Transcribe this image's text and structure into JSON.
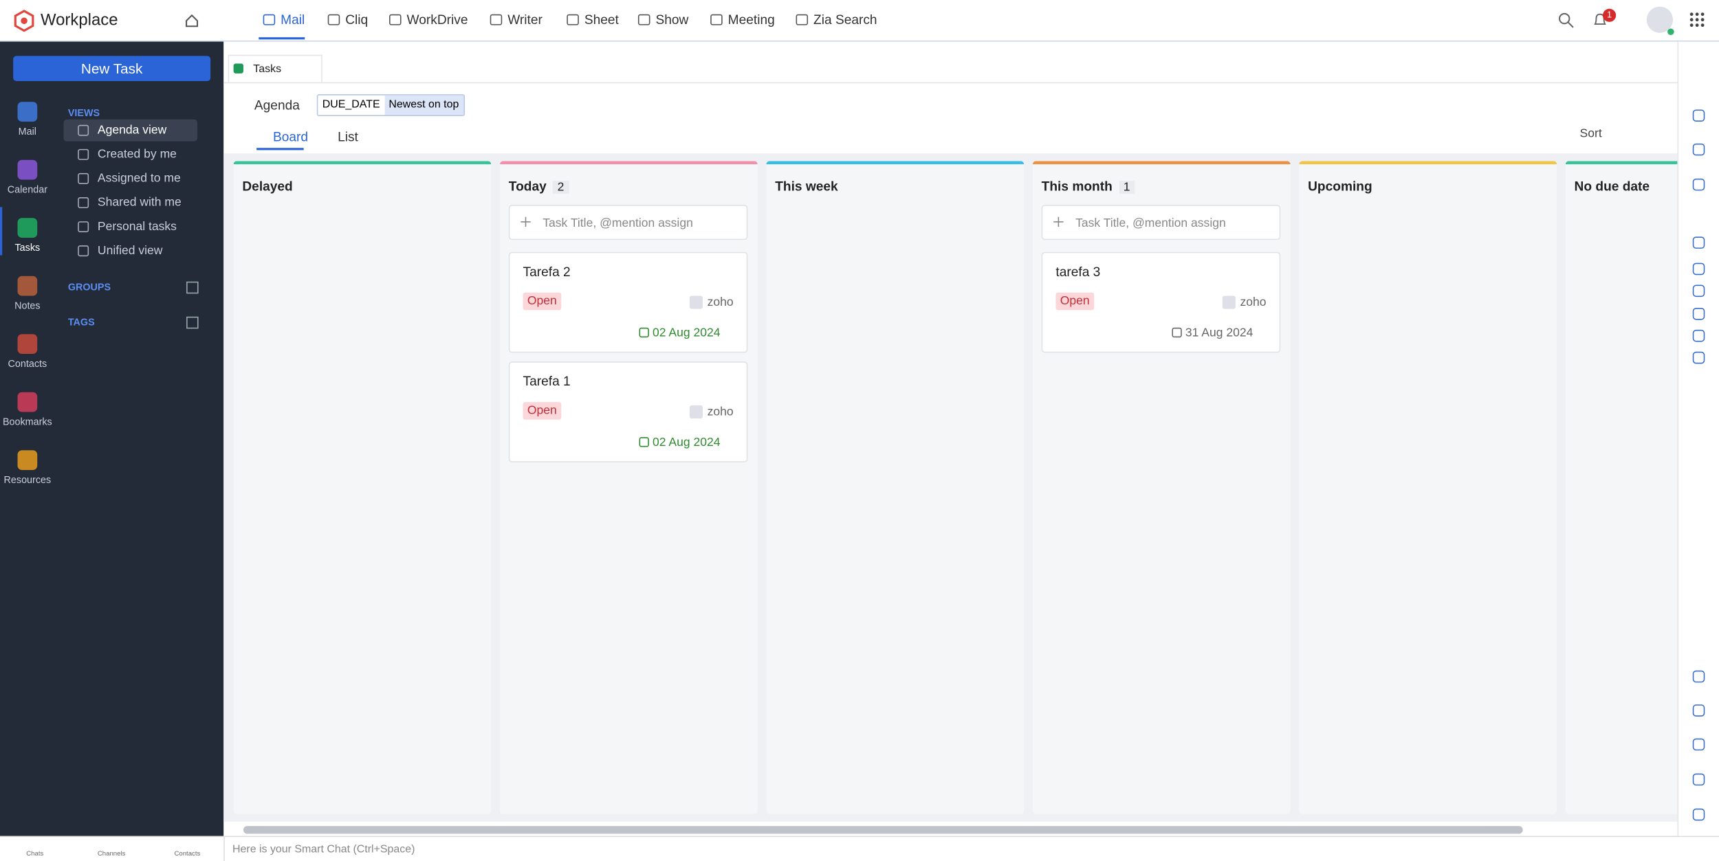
{
  "header": {
    "brand": "Workplace",
    "nav": [
      "Mail",
      "Cliq",
      "WorkDrive",
      "Writer",
      "Sheet",
      "Show",
      "Meeting",
      "Zia Search"
    ],
    "notification_count": 1
  },
  "new_task": "New Task",
  "apps": [
    {
      "label": "Mail",
      "color": "#3b6fc7"
    },
    {
      "label": "Calendar",
      "color": "#7a4fc2"
    },
    {
      "label": "Tasks",
      "color": "#1f9a5a"
    },
    {
      "label": "Notes",
      "color": "#a3573b"
    },
    {
      "label": "Contacts",
      "color": "#b0453b"
    },
    {
      "label": "Bookmarks",
      "color": "#b83a55"
    },
    {
      "label": "Resources",
      "color": "#c98a22"
    }
  ],
  "sidebar": {
    "views_heading": "VIEWS",
    "views": [
      "Agenda view",
      "Created by me",
      "Assigned to me",
      "Shared with me",
      "Personal tasks",
      "Unified view"
    ],
    "groups_heading": "GROUPS",
    "tags_heading": "TAGS"
  },
  "tab": "Tasks",
  "toolbar": {
    "agenda": "Agenda",
    "sort_field": "DUE_DATE",
    "sort_order": "Newest on top",
    "board": "Board",
    "list": "List",
    "sort": "Sort"
  },
  "columns": [
    {
      "title": "Delayed",
      "color": "#38c49a"
    },
    {
      "title": "Today",
      "count": 2,
      "color": "#f38fa8",
      "placeholder": "Task Title, @mention assign",
      "tasks": [
        {
          "title": "Tarefa 2",
          "status": "Open",
          "owner": "zoho",
          "due": "02 Aug 2024",
          "due_color": "#2e8b2e"
        },
        {
          "title": "Tarefa 1",
          "status": "Open",
          "owner": "zoho",
          "due": "02 Aug 2024",
          "due_color": "#2e8b2e"
        }
      ]
    },
    {
      "title": "This week",
      "color": "#38bde6"
    },
    {
      "title": "This month",
      "count": 1,
      "color": "#ee9140",
      "placeholder": "Task Title, @mention assign",
      "tasks": [
        {
          "title": "tarefa 3",
          "status": "Open",
          "owner": "zoho",
          "due": "31 Aug 2024",
          "due_color": "#666666"
        }
      ]
    },
    {
      "title": "Upcoming",
      "color": "#f2c544"
    },
    {
      "title": "No due date",
      "color": "#38c49a"
    }
  ],
  "bottom": {
    "chats": "Chats",
    "channels": "Channels",
    "contacts": "Contacts",
    "smart_chat": "Here is your Smart Chat (Ctrl+Space)"
  }
}
